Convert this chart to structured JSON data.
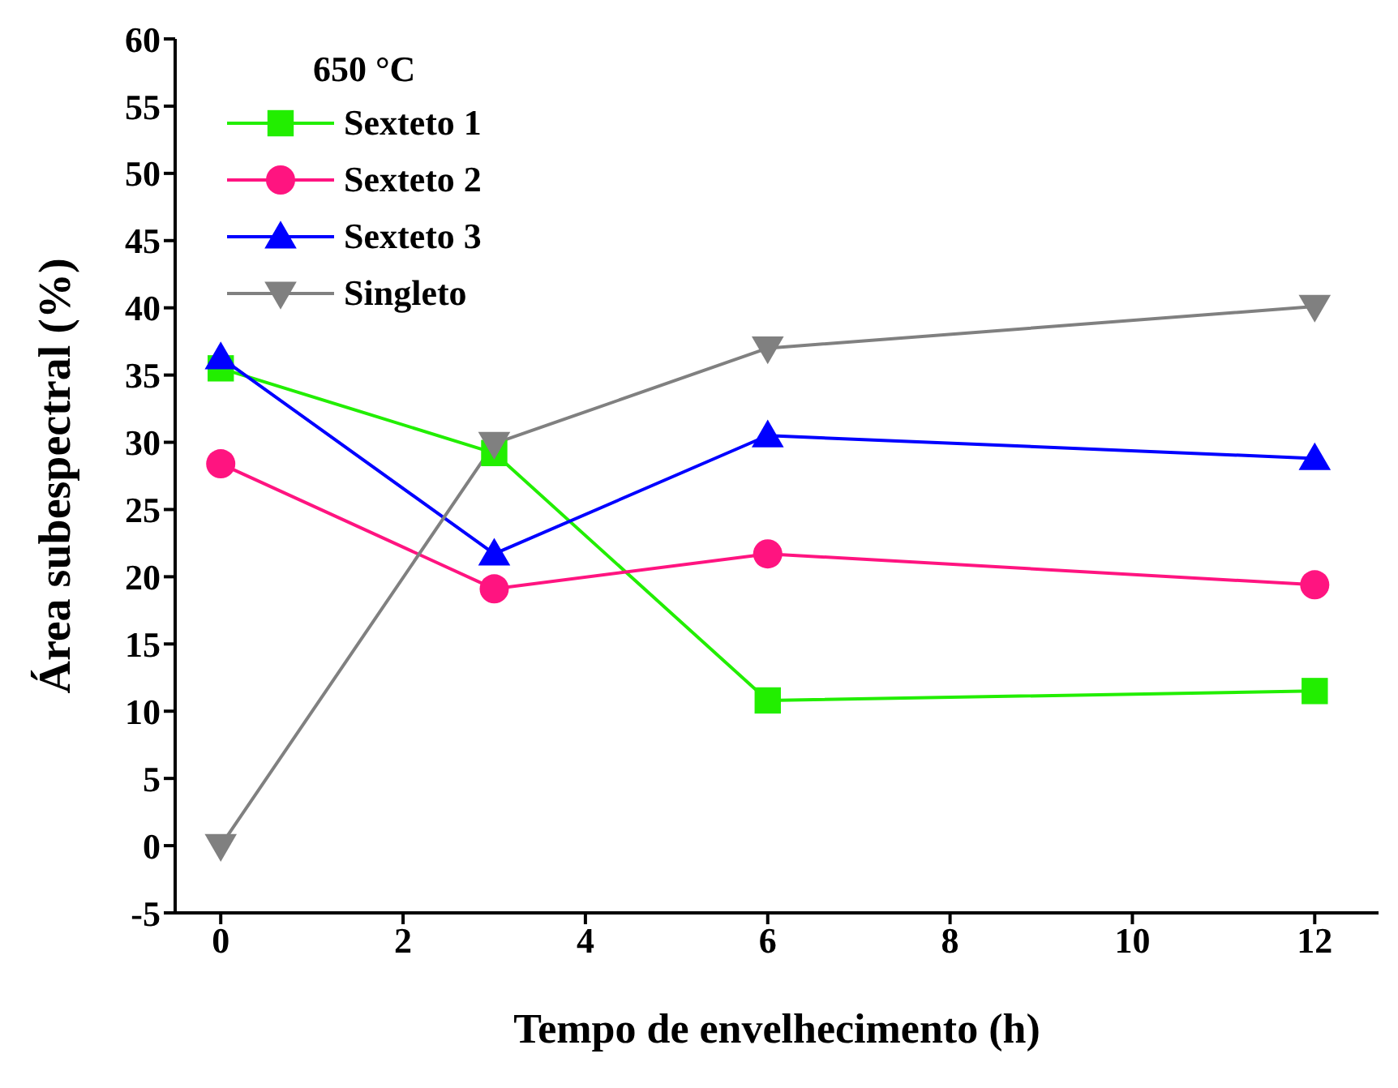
{
  "chart_data": {
    "type": "line",
    "xlabel": "Tempo de envelhecimento (h)",
    "ylabel": "Área subespectral (%)",
    "legend_title": "650 °C",
    "legend": "top left",
    "grid": false,
    "x": [
      0,
      3,
      6,
      12
    ],
    "xlim": [
      -0.5,
      12.7
    ],
    "xticks": [
      0,
      2,
      4,
      6,
      8,
      10,
      12
    ],
    "ylim": [
      -5,
      60
    ],
    "yticks": [
      -5,
      0,
      5,
      10,
      15,
      20,
      25,
      30,
      35,
      40,
      45,
      50,
      55,
      60
    ],
    "series": [
      {
        "name": "Sexteto 1",
        "color": "#22ee00",
        "marker": "square",
        "values": [
          35.5,
          29.2,
          10.8,
          11.5
        ]
      },
      {
        "name": "Sexteto 2",
        "color": "#ff1480",
        "marker": "circle",
        "values": [
          28.4,
          19.1,
          21.7,
          19.4
        ]
      },
      {
        "name": "Sexteto 3",
        "color": "#0000ff",
        "marker": "triangle",
        "values": [
          36.3,
          21.7,
          30.5,
          28.8
        ]
      },
      {
        "name": "Singleto",
        "color": "#808080",
        "marker": "triangle-down",
        "values": [
          0,
          29.9,
          37,
          40.1
        ]
      }
    ]
  }
}
